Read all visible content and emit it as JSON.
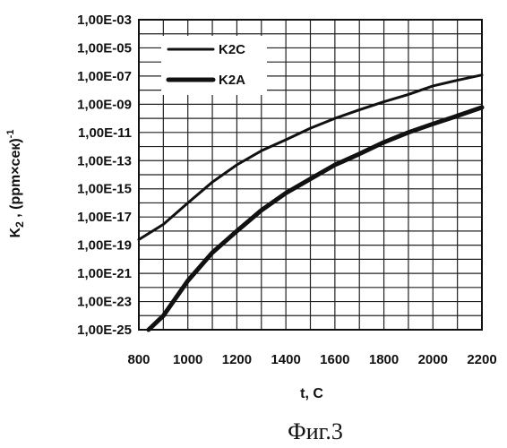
{
  "chart_data": {
    "type": "line",
    "xlabel": "t, C",
    "ylabel_main": "K",
    "ylabel_sub": "2",
    "ylabel_rest": " , (ppm×сек)",
    "ylabel_sup": "-1",
    "y_scale": "log",
    "xlim": [
      800,
      2200
    ],
    "ylim": [
      1e-25,
      0.001
    ],
    "x_ticks": [
      800,
      1000,
      1200,
      1400,
      1600,
      1800,
      2000,
      2200
    ],
    "y_ticks": [
      {
        "value": 0.001,
        "label": "1,00E-03"
      },
      {
        "value": 1e-05,
        "label": "1,00E-05"
      },
      {
        "value": 1e-07,
        "label": "1,00E-07"
      },
      {
        "value": 1e-09,
        "label": "1,00E-09"
      },
      {
        "value": 1e-11,
        "label": "1,00E-11"
      },
      {
        "value": 1e-13,
        "label": "1,00E-13"
      },
      {
        "value": 1e-15,
        "label": "1,00E-15"
      },
      {
        "value": 1e-17,
        "label": "1,00E-17"
      },
      {
        "value": 1e-19,
        "label": "1,00E-19"
      },
      {
        "value": 1e-21,
        "label": "1,00E-21"
      },
      {
        "value": 1e-23,
        "label": "1,00E-23"
      },
      {
        "value": 1e-25,
        "label": "1,00E-25"
      }
    ],
    "grid": true,
    "legend_position": "top-left",
    "series": [
      {
        "name": "K2C",
        "color": "#111111",
        "line": "thin",
        "points": [
          [
            800,
            2.5e-19
          ],
          [
            900,
            3e-18
          ],
          [
            1000,
            1e-16
          ],
          [
            1100,
            3e-15
          ],
          [
            1200,
            5e-14
          ],
          [
            1300,
            5e-13
          ],
          [
            1400,
            3e-12
          ],
          [
            1500,
            2e-11
          ],
          [
            1600,
            1e-10
          ],
          [
            1700,
            4e-10
          ],
          [
            1800,
            1.5e-09
          ],
          [
            1900,
            5e-09
          ],
          [
            2000,
            2e-08
          ],
          [
            2100,
            5e-08
          ],
          [
            2200,
            1.2e-07
          ]
        ]
      },
      {
        "name": "K2A",
        "color": "#111111",
        "line": "thick",
        "points": [
          [
            840,
            1e-25
          ],
          [
            900,
            1e-24
          ],
          [
            1000,
            3e-22
          ],
          [
            1100,
            3e-20
          ],
          [
            1200,
            1e-18
          ],
          [
            1300,
            3e-17
          ],
          [
            1400,
            5e-16
          ],
          [
            1500,
            5e-15
          ],
          [
            1600,
            5e-14
          ],
          [
            1700,
            3e-13
          ],
          [
            1800,
            2e-12
          ],
          [
            1900,
            1e-11
          ],
          [
            2000,
            4e-11
          ],
          [
            2100,
            1.5e-10
          ],
          [
            2200,
            6e-10
          ]
        ]
      }
    ]
  },
  "caption": "Фиг.3"
}
